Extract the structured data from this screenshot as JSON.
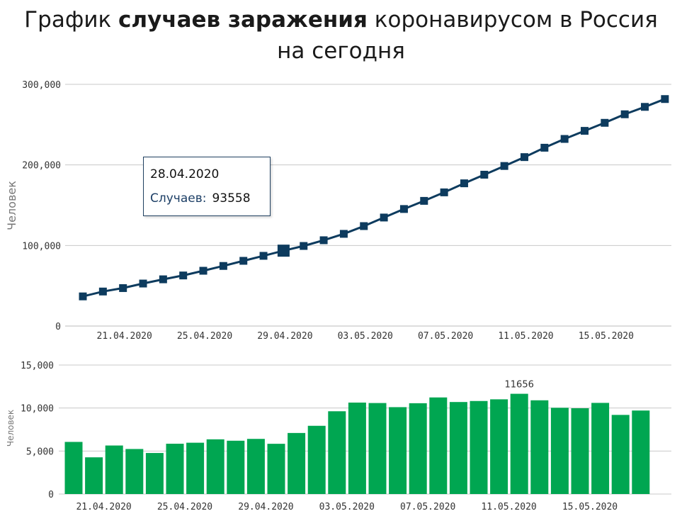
{
  "title": {
    "part1": "График ",
    "bold": "случаев заражения",
    "part2": " коронавирусом в Россия",
    "line2": "на сегодня"
  },
  "chart_data": [
    {
      "type": "line",
      "series": [
        {
          "values": [
            36793,
            42853,
            47121,
            52763,
            57999,
            62773,
            68622,
            74588,
            80949,
            87147,
            93558,
            99399,
            106498,
            114431,
            124054,
            134687,
            145268,
            155370,
            165929,
            177160,
            187859,
            198676,
            209688,
            221344,
            232243,
            242271,
            252245,
            262843,
            272043,
            281752
          ]
        }
      ],
      "ylabel": "Человек",
      "ylim": [
        0,
        300000
      ],
      "yticks": [
        "0",
        "100,000",
        "200,000",
        "300,000"
      ],
      "xtick_labels": [
        "21.04.2020",
        "25.04.2020",
        "29.04.2020",
        "03.05.2020",
        "07.05.2020",
        "11.05.2020",
        "15.05.2020"
      ],
      "color": "#0d3b5e",
      "grid": "horizontal",
      "tooltip": {
        "date": "28.04.2020",
        "label": "Случаев:",
        "value": "93558"
      }
    },
    {
      "type": "bar",
      "series": [
        {
          "values": [
            6060,
            4268,
            5642,
            5236,
            4774,
            5849,
            5966,
            6361,
            6198,
            6411,
            5841,
            7099,
            7933,
            9623,
            10633,
            10581,
            10102,
            10559,
            11231,
            10699,
            10817,
            11012,
            11656,
            10899,
            10028,
            9974,
            10598,
            9200,
            9709
          ]
        }
      ],
      "ylabel": "Человек",
      "ylim": [
        0,
        15000
      ],
      "yticks": [
        "0",
        "5,000",
        "10,000",
        "15,000"
      ],
      "xtick_labels": [
        "21.04.2020",
        "25.04.2020",
        "29.04.2020",
        "03.05.2020",
        "07.05.2020",
        "11.05.2020",
        "15.05.2020"
      ],
      "data_label": "11656",
      "color": "#00a651",
      "grid": "horizontal"
    }
  ]
}
